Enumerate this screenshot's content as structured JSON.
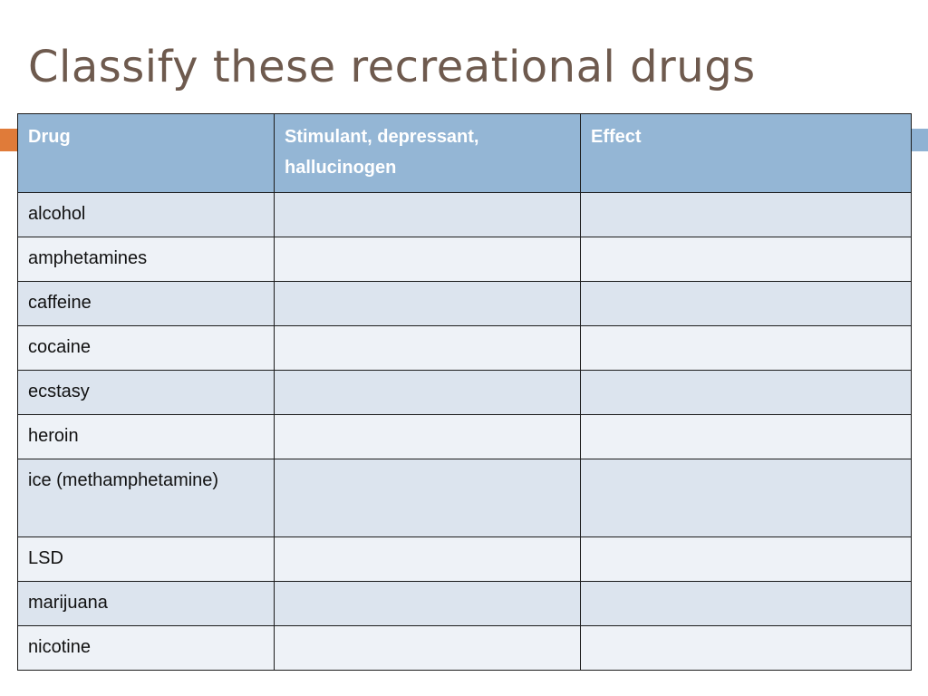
{
  "slide": {
    "title": "Classify these recreational drugs"
  },
  "colors": {
    "title": "#6e5a4e",
    "header_fill": "#94b6d5",
    "row_fill_dark": "#dce4ee",
    "row_fill_light": "#eef2f7",
    "accent_orange": "#e07b39",
    "accent_blue": "#8fb2d3"
  },
  "table": {
    "headers": [
      "Drug",
      "Stimulant, depressant, hallucinogen",
      "Effect"
    ],
    "rows": [
      {
        "drug": "alcohol",
        "classification": "",
        "effect": ""
      },
      {
        "drug": "amphetamines",
        "classification": "",
        "effect": ""
      },
      {
        "drug": "caffeine",
        "classification": "",
        "effect": ""
      },
      {
        "drug": "cocaine",
        "classification": "",
        "effect": ""
      },
      {
        "drug": "ecstasy",
        "classification": "",
        "effect": ""
      },
      {
        "drug": "heroin",
        "classification": "",
        "effect": ""
      },
      {
        "drug": "ice (methamphetamine)",
        "classification": "",
        "effect": ""
      },
      {
        "drug": "LSD",
        "classification": "",
        "effect": ""
      },
      {
        "drug": "marijuana",
        "classification": "",
        "effect": ""
      },
      {
        "drug": "nicotine",
        "classification": "",
        "effect": ""
      }
    ]
  }
}
